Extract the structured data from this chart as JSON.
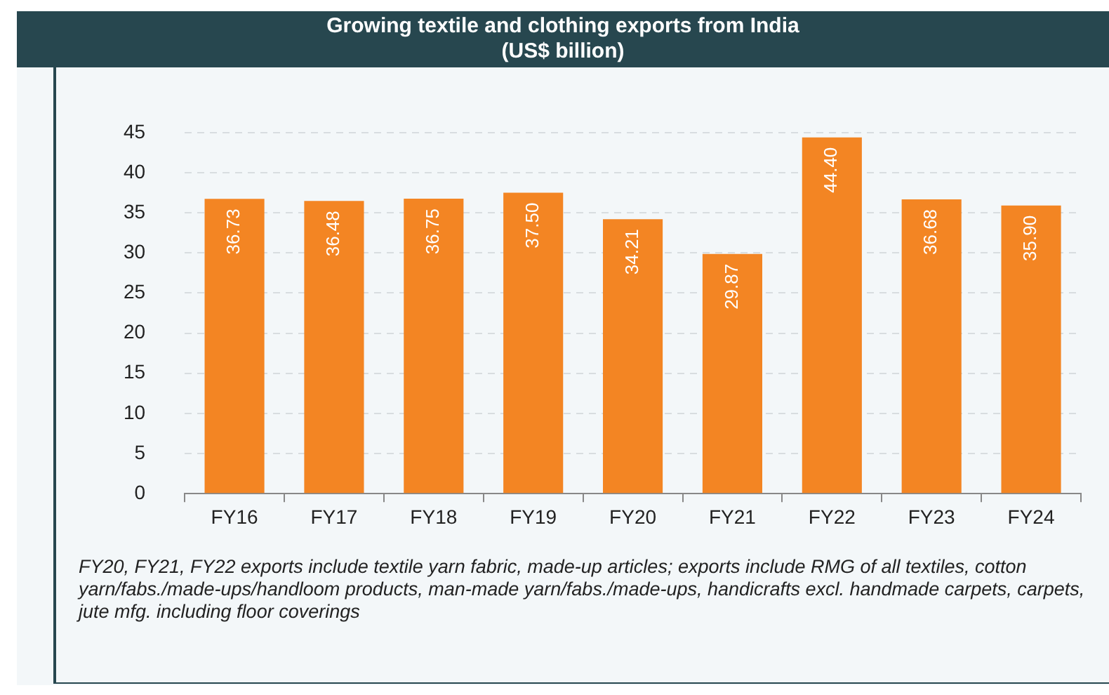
{
  "chart_data": {
    "type": "bar",
    "title": "Growing textile and clothing exports from India",
    "subtitle": "(US$ billion)",
    "categories": [
      "FY16",
      "FY17",
      "FY18",
      "FY19",
      "FY20",
      "FY21",
      "FY22",
      "FY23",
      "FY24"
    ],
    "values": [
      36.73,
      36.48,
      36.75,
      37.5,
      34.21,
      29.87,
      44.4,
      36.68,
      35.9
    ],
    "value_labels": [
      "36.73",
      "36.48",
      "36.75",
      "37.50",
      "34.21",
      "29.87",
      "44.40",
      "36.68",
      "35.90"
    ],
    "color": "#f38523",
    "ylim": [
      0,
      45
    ],
    "yticks": [
      0,
      5,
      10,
      15,
      20,
      25,
      30,
      35,
      40,
      45
    ],
    "grid": "y",
    "legend": false,
    "annotations": [
      "FY20, FY21, FY22 exports include textile yarn fabric, made-up articles; exports include RMG of all textiles, cotton yarn/fabs./made-ups/handloom products, man-made yarn/fabs./made-ups, handicrafts excl. handmade carpets, carpets, jute mfg. including floor coverings"
    ]
  }
}
